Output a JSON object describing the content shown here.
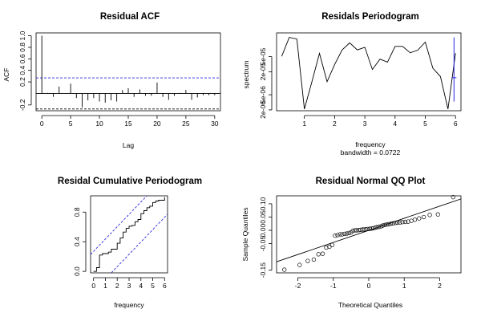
{
  "colors": {
    "ink": "#000000",
    "bounds": "#2a2adf",
    "peak": "#2a2adf"
  },
  "chart_data": [
    {
      "type": "bar",
      "title": "Residual ACF",
      "xlabel": "Lag",
      "ylabel": "ACF",
      "xlim": [
        -1,
        31
      ],
      "ylim": [
        -0.3,
        1.05
      ],
      "xticks": [
        "0",
        "5",
        "10",
        "15",
        "20",
        "25",
        "30"
      ],
      "xtick_values": [
        0,
        5,
        10,
        15,
        20,
        25,
        30
      ],
      "yticks": [
        "-0.2",
        "0.2",
        "0.4",
        "0.6",
        "0.8",
        "1.0"
      ],
      "ytick_values": [
        -0.2,
        0.2,
        0.4,
        0.6,
        0.8,
        1.0
      ],
      "lags": [
        0,
        1,
        2,
        3,
        4,
        5,
        6,
        7,
        8,
        9,
        10,
        11,
        12,
        13,
        14,
        15,
        16,
        17,
        18,
        19,
        20,
        21,
        22,
        23,
        24,
        25,
        26,
        27,
        28,
        29,
        30,
        31
      ],
      "values": [
        1.0,
        0.01,
        -0.06,
        0.12,
        0.0,
        0.17,
        -0.08,
        -0.24,
        -0.12,
        -0.08,
        -0.14,
        -0.16,
        -0.12,
        -0.14,
        0.06,
        0.09,
        -0.06,
        0.07,
        -0.04,
        -0.04,
        0.19,
        -0.06,
        -0.11,
        -0.04,
        0.01,
        0.06,
        -0.11,
        -0.07,
        -0.03,
        -0.03,
        -0.03,
        0.01
      ],
      "conf_bound": 0.27,
      "lower_bound": -0.27
    },
    {
      "type": "line",
      "title": "Residals Periodogram",
      "xlabel": "frequency",
      "note": "bandwidth = 0.0722",
      "ylabel": "spectrum",
      "log_y": true,
      "xlim": [
        0.08,
        6.18
      ],
      "ylim": [
        1.9e-06,
        0.00021
      ],
      "xticks": [
        "1",
        "2",
        "3",
        "4",
        "5",
        "6"
      ],
      "xtick_values": [
        1,
        2,
        3,
        4,
        5,
        6
      ],
      "yticks": [
        "2e-06",
        "5e-06",
        "2e-05",
        "5e-05"
      ],
      "ytick_values": [
        2e-06,
        5e-06,
        2e-05,
        5e-05
      ],
      "x": [
        0.25,
        0.5,
        0.75,
        1.0,
        1.25,
        1.5,
        1.75,
        2.0,
        2.25,
        2.5,
        2.75,
        3.0,
        3.25,
        3.5,
        3.75,
        4.0,
        4.25,
        4.5,
        4.75,
        5.0,
        5.25,
        5.5,
        5.75,
        6.0
      ],
      "y": [
        5.1e-05,
        0.00016,
        0.000145,
        2.1e-06,
        1.1e-05,
        6.1e-05,
        1.1e-05,
        3.1e-05,
        7.5e-05,
        0.000115,
        7.5e-05,
        8.8e-05,
        2.3e-05,
        4.3e-05,
        3.6e-05,
        9.3e-05,
        9.3e-05,
        6.3e-05,
        7.4e-05,
        0.00012,
        2.5e-05,
        1.5e-05,
        2.1e-06,
        6.2e-05
      ],
      "ci_x": 5.95,
      "ci_y": [
        3.3e-06,
        0.00016
      ],
      "ci_center": 1.4e-05
    },
    {
      "type": "line",
      "title": "Residal Cumulative Periodogram",
      "xlabel": "frequency",
      "xlim": [
        -0.25,
        6.25
      ],
      "ylim": [
        -0.02,
        1.02
      ],
      "xticks": [
        "0",
        "1",
        "2",
        "3",
        "4",
        "5",
        "6"
      ],
      "xtick_values": [
        0,
        1,
        2,
        3,
        4,
        5,
        6
      ],
      "yticks": [
        "0.0",
        "0.4",
        "0.8"
      ],
      "ytick_values": [
        0.0,
        0.4,
        0.8
      ],
      "steps_x": [
        0.0,
        0.25,
        0.5,
        0.75,
        1.0,
        1.25,
        1.5,
        1.75,
        2.0,
        2.25,
        2.5,
        2.75,
        3.0,
        3.25,
        3.5,
        3.75,
        4.0,
        4.25,
        4.5,
        4.75,
        5.0,
        5.25,
        5.5,
        5.75,
        6.0
      ],
      "steps_y": [
        0.0,
        0.05,
        0.22,
        0.24,
        0.24,
        0.26,
        0.3,
        0.3,
        0.38,
        0.45,
        0.53,
        0.58,
        0.61,
        0.62,
        0.67,
        0.7,
        0.78,
        0.82,
        0.86,
        0.88,
        0.93,
        0.95,
        0.96,
        0.96,
        1.0
      ],
      "band_offset": 0.27
    },
    {
      "type": "scatter",
      "title": "Residual Normal QQ Plot",
      "xlabel": "Theoretical Quantiles",
      "ylabel": "Sample Quantiles",
      "xlim": [
        -2.6,
        2.6
      ],
      "ylim": [
        -0.16,
        0.13
      ],
      "xticks": [
        "-2",
        "-1",
        "0",
        "1",
        "2"
      ],
      "xtick_values": [
        -2,
        -1,
        0,
        1,
        2
      ],
      "yticks": [
        "-0.15",
        "-0.05",
        "0.00",
        "0.05",
        "0.10"
      ],
      "ytick_values": [
        -0.15,
        -0.05,
        0.0,
        0.05,
        0.1
      ],
      "x": [
        -2.38,
        -1.95,
        -1.72,
        -1.55,
        -1.42,
        -1.3,
        -1.2,
        -1.11,
        -1.03,
        -0.95,
        -0.88,
        -0.81,
        -0.75,
        -0.68,
        -0.62,
        -0.56,
        -0.5,
        -0.45,
        -0.39,
        -0.34,
        -0.28,
        -0.23,
        -0.18,
        -0.13,
        -0.08,
        -0.03,
        0.03,
        0.08,
        0.13,
        0.18,
        0.23,
        0.28,
        0.34,
        0.39,
        0.45,
        0.5,
        0.56,
        0.62,
        0.68,
        0.75,
        0.81,
        0.88,
        0.95,
        1.03,
        1.11,
        1.2,
        1.3,
        1.42,
        1.55,
        1.72,
        1.95,
        2.38
      ],
      "y": [
        -0.148,
        -0.13,
        -0.115,
        -0.11,
        -0.09,
        -0.088,
        -0.065,
        -0.062,
        -0.055,
        -0.02,
        -0.018,
        -0.015,
        -0.015,
        -0.013,
        -0.012,
        -0.01,
        -0.008,
        -0.002,
        0.0,
        0.0,
        0.001,
        0.002,
        0.003,
        0.003,
        0.004,
        0.005,
        0.006,
        0.007,
        0.008,
        0.01,
        0.012,
        0.013,
        0.015,
        0.018,
        0.02,
        0.022,
        0.023,
        0.025,
        0.026,
        0.028,
        0.029,
        0.03,
        0.031,
        0.032,
        0.033,
        0.036,
        0.04,
        0.045,
        0.05,
        0.058,
        0.06,
        0.125
      ],
      "line_intercept": 0.0,
      "line_slope": 0.0455
    }
  ]
}
